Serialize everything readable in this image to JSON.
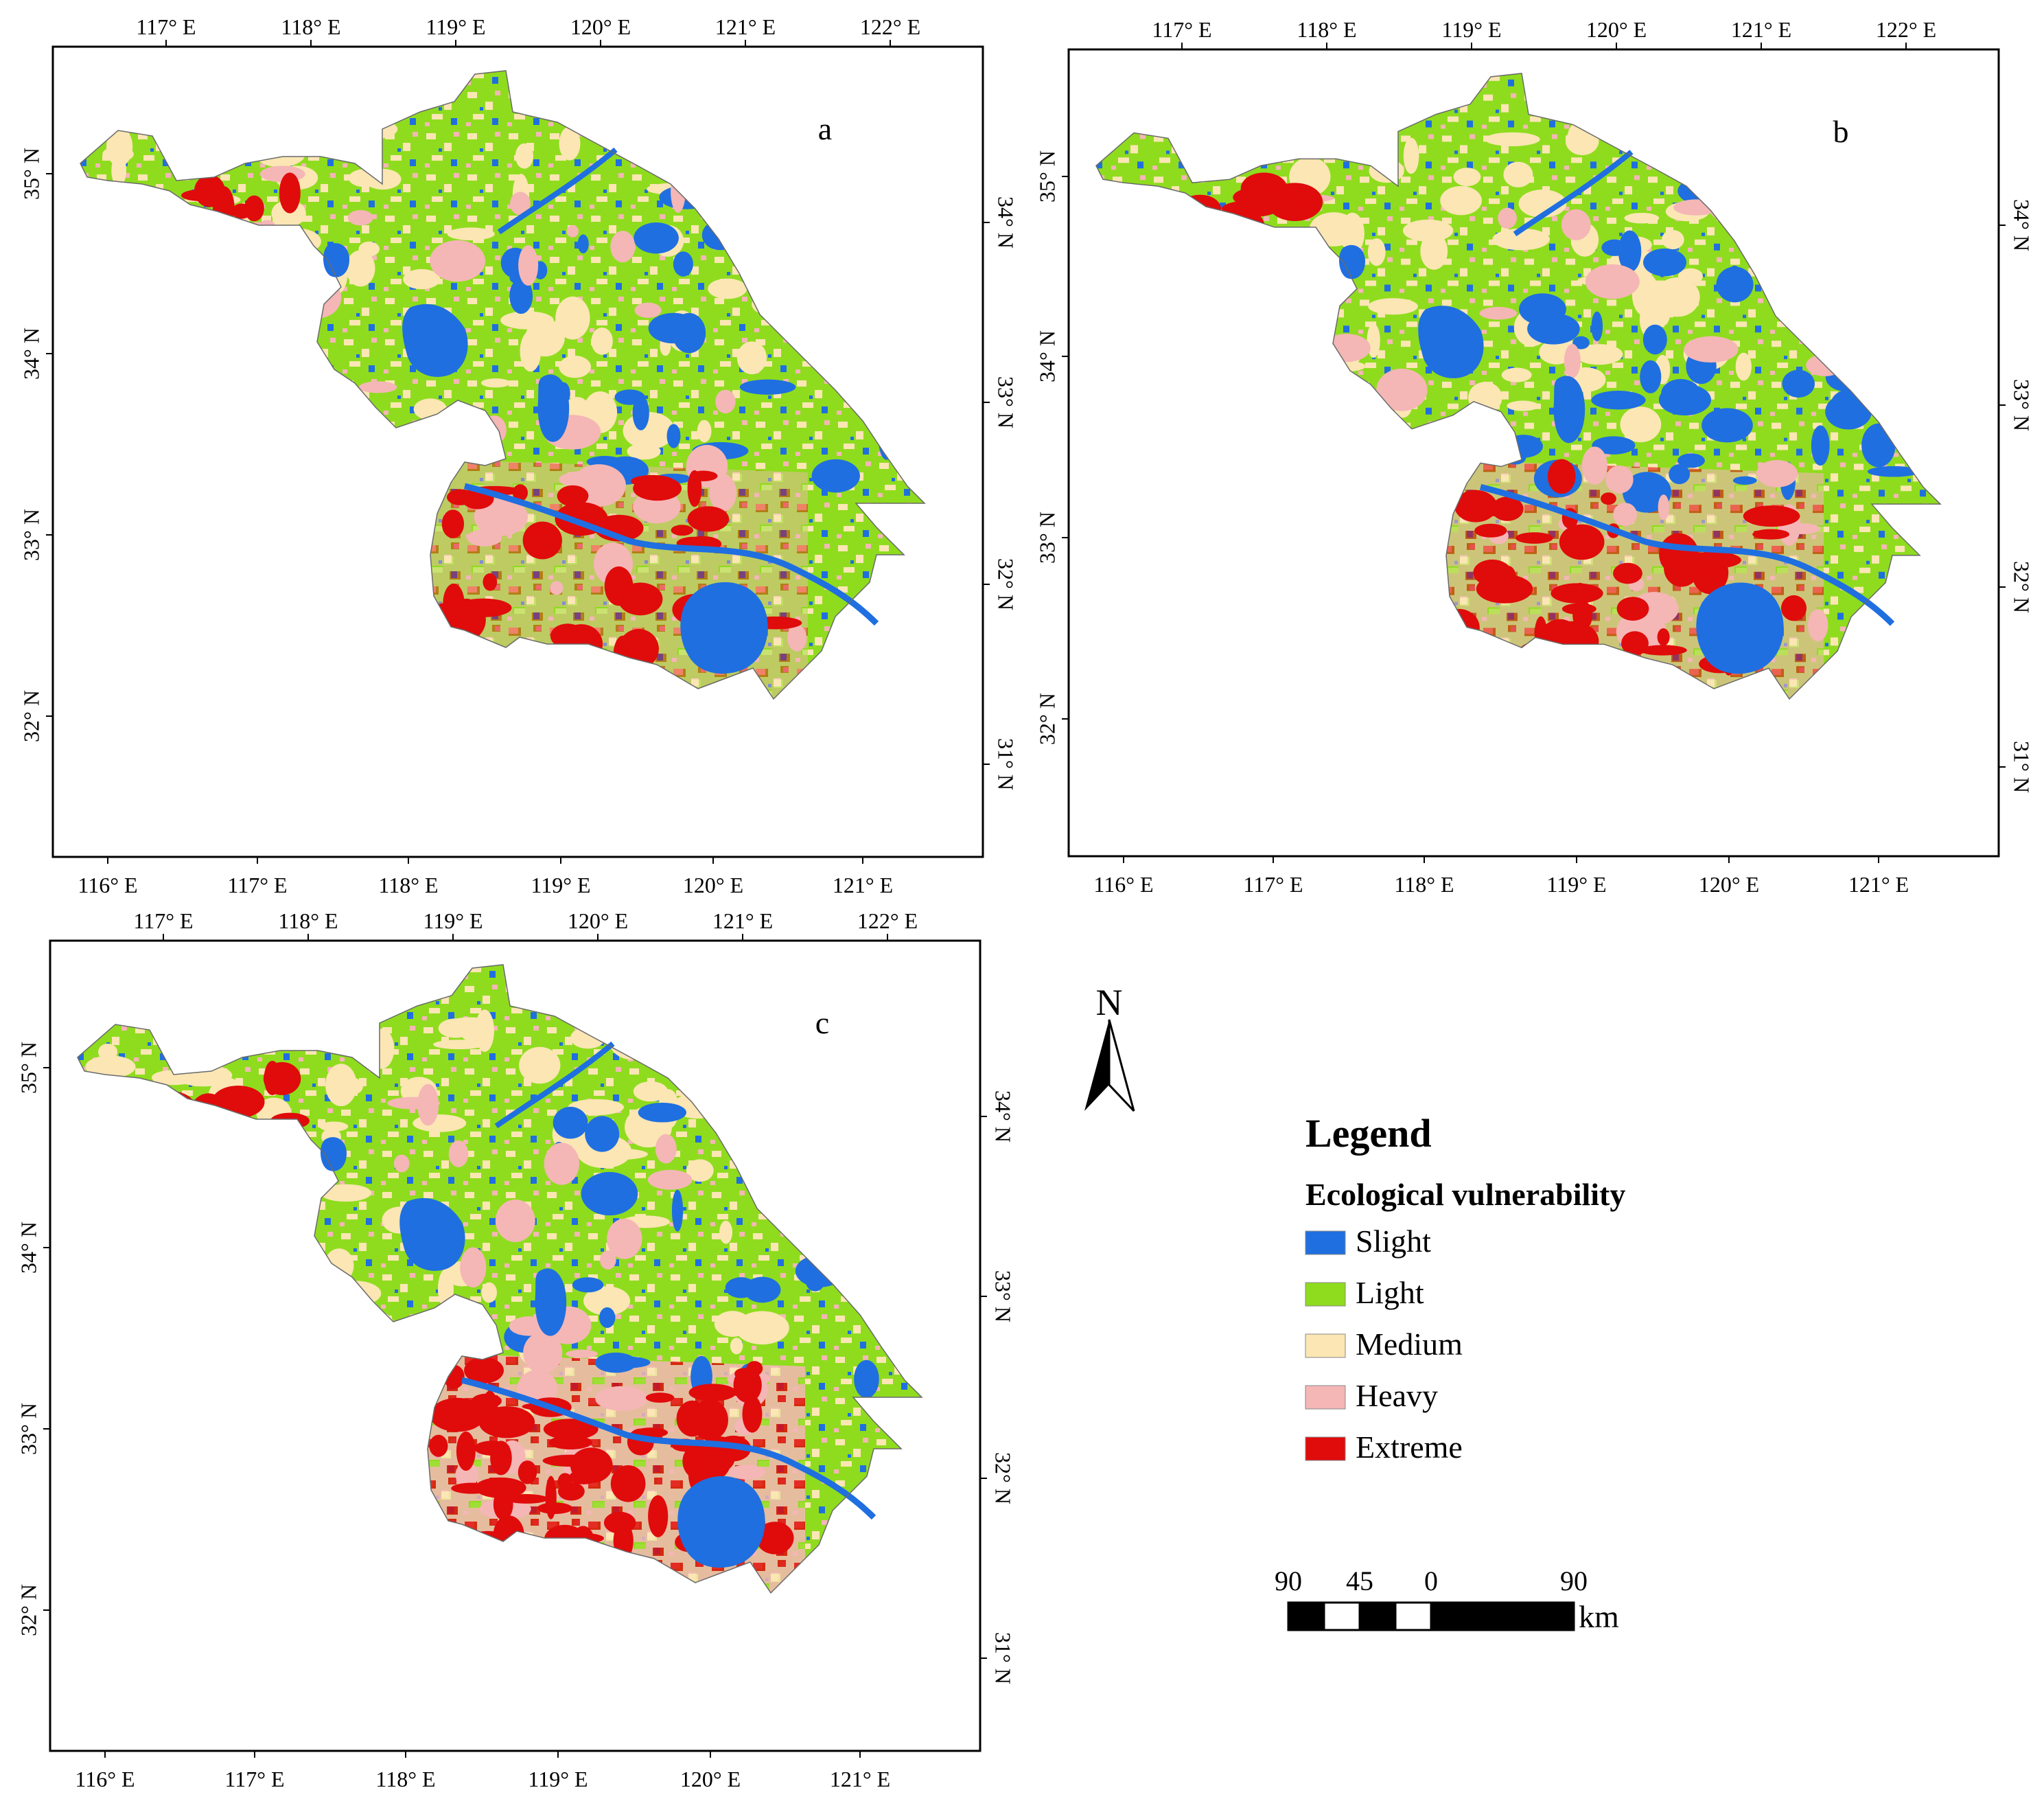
{
  "panels": [
    {
      "letter": "a",
      "top_ticks": [
        "117° E",
        "118° E",
        "119° E",
        "120° E",
        "121° E",
        "122° E"
      ],
      "bottom_ticks": [
        "116° E",
        "117° E",
        "118° E",
        "119° E",
        "120° E",
        "121° E"
      ],
      "left_ticks": [
        "35° N",
        "34° N",
        "33° N",
        "32° N"
      ],
      "right_ticks": [
        "34° N",
        "33° N",
        "32° N",
        "31° N"
      ]
    },
    {
      "letter": "b",
      "top_ticks": [
        "117° E",
        "118° E",
        "119° E",
        "120° E",
        "121° E",
        "122° E"
      ],
      "bottom_ticks": [
        "116° E",
        "117° E",
        "118° E",
        "119° E",
        "120° E",
        "121° E"
      ],
      "left_ticks": [
        "35° N",
        "34° N",
        "33° N",
        "32° N"
      ],
      "right_ticks": [
        "34° N",
        "33° N",
        "32° N",
        "31° N"
      ]
    },
    {
      "letter": "c",
      "top_ticks": [
        "117° E",
        "118° E",
        "119° E",
        "120° E",
        "121° E",
        "122° E"
      ],
      "bottom_ticks": [
        "116° E",
        "117° E",
        "118° E",
        "119° E",
        "120° E",
        "121° E"
      ],
      "left_ticks": [
        "35° N",
        "34° N",
        "33° N",
        "32° N"
      ],
      "right_ticks": [
        "34° N",
        "33° N",
        "32° N",
        "31° N"
      ]
    }
  ],
  "north_arrow": {
    "label": "N"
  },
  "legend": {
    "title": "Legend",
    "subtitle": "Ecological vulnerability",
    "items": [
      {
        "label": "Slight",
        "color": "#1f6fe0"
      },
      {
        "label": "Light",
        "color": "#8fdc1e"
      },
      {
        "label": "Medium",
        "color": "#fbe6b4"
      },
      {
        "label": "Heavy",
        "color": "#f5b6b6"
      },
      {
        "label": "Extreme",
        "color": "#e00b0b"
      }
    ]
  },
  "scale_bar": {
    "labels": [
      "90",
      "45",
      "0",
      "90"
    ],
    "unit": "km"
  },
  "colors": {
    "water": "#1f6fe0",
    "slight": "#1f6fe0",
    "light": "#8fdc1e",
    "medium": "#fbe6b4",
    "heavy": "#f5b6b6",
    "extreme": "#e00b0b"
  }
}
